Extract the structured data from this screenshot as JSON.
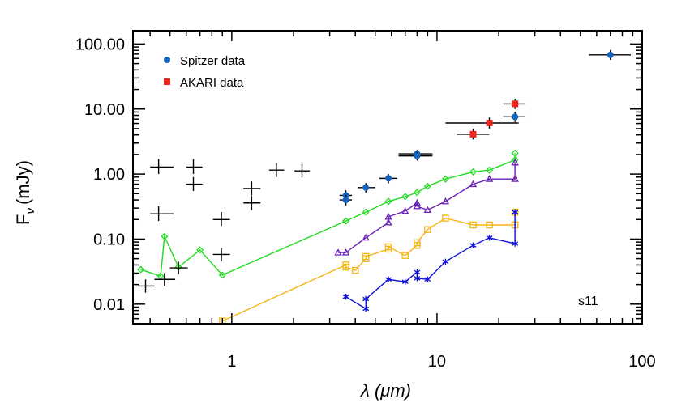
{
  "chart_data": {
    "type": "scatter",
    "xscale": "log",
    "yscale": "log",
    "xlim": [
      0.33,
      100
    ],
    "ylim": [
      0.005,
      160
    ],
    "xlabel": "λ (μm)",
    "ylabel": "F",
    "ylabel_sub": "ν",
    "ylabel_unit": "(mJy)",
    "xticks": [
      {
        "v": 1,
        "label": "1"
      },
      {
        "v": 10,
        "label": "10"
      },
      {
        "v": 100,
        "label": "100"
      }
    ],
    "yticks": [
      {
        "v": 0.01,
        "label": "0.01"
      },
      {
        "v": 0.1,
        "label": "0.10"
      },
      {
        "v": 1,
        "label": "1.00"
      },
      {
        "v": 10,
        "label": "10.00"
      },
      {
        "v": 100,
        "label": "100.00"
      }
    ],
    "legend": [
      {
        "label": "Spitzer data",
        "color": "#1565c0",
        "marker": "circle"
      },
      {
        "label": "AKARI data",
        "color": "#e8281c",
        "marker": "square"
      }
    ],
    "annotation": "s11",
    "colors": {
      "axis": "#000000",
      "spitzer": "#1565c0",
      "akari": "#e8281c",
      "green": "#22dd22",
      "purple": "#6a1fb8",
      "orange": "#f5b614",
      "blue": "#1010dd",
      "black_cross": "#000000"
    },
    "black_crosses": [
      {
        "x": 0.44,
        "y": 1.28,
        "xlo": 0.4,
        "xhi": 0.52,
        "ylo": 1.0,
        "yhi": 1.7
      },
      {
        "x": 0.44,
        "y": 0.245,
        "xlo": 0.4,
        "xhi": 0.52,
        "ylo": 0.19,
        "yhi": 0.32
      },
      {
        "x": 0.38,
        "y": 0.019,
        "xlo": 0.35,
        "xhi": 0.42,
        "ylo": 0.015,
        "yhi": 0.024
      },
      {
        "x": 0.47,
        "y": 0.024,
        "xlo": 0.42,
        "xhi": 0.53,
        "ylo": 0.019,
        "yhi": 0.03
      },
      {
        "x": 0.55,
        "y": 0.036,
        "xlo": 0.5,
        "xhi": 0.61,
        "ylo": 0.029,
        "yhi": 0.045
      },
      {
        "x": 0.65,
        "y": 1.28,
        "xlo": 0.6,
        "xhi": 0.72,
        "ylo": 1.0,
        "yhi": 1.7
      },
      {
        "x": 0.65,
        "y": 0.7,
        "xlo": 0.6,
        "xhi": 0.72,
        "ylo": 0.55,
        "yhi": 0.9
      },
      {
        "x": 0.89,
        "y": 0.2,
        "xlo": 0.81,
        "xhi": 0.98,
        "ylo": 0.16,
        "yhi": 0.26
      },
      {
        "x": 0.89,
        "y": 0.058,
        "xlo": 0.81,
        "xhi": 0.98,
        "ylo": 0.046,
        "yhi": 0.073
      },
      {
        "x": 1.25,
        "y": 0.6,
        "xlo": 1.14,
        "xhi": 1.38,
        "ylo": 0.47,
        "yhi": 0.77
      },
      {
        "x": 1.25,
        "y": 0.36,
        "xlo": 1.14,
        "xhi": 1.38,
        "ylo": 0.28,
        "yhi": 0.46
      },
      {
        "x": 1.65,
        "y": 1.15,
        "xlo": 1.52,
        "xhi": 1.8,
        "ylo": 0.9,
        "yhi": 1.47
      },
      {
        "x": 2.2,
        "y": 1.12,
        "xlo": 2.02,
        "xhi": 2.4,
        "ylo": 0.88,
        "yhi": 1.43
      }
    ],
    "spitzer": [
      {
        "x": 3.6,
        "y": 0.47,
        "xlo": 3.35,
        "xhi": 3.85,
        "ylo": 0.39,
        "yhi": 0.56
      },
      {
        "x": 3.6,
        "y": 0.4,
        "xlo": 3.35,
        "xhi": 3.85,
        "ylo": 0.33,
        "yhi": 0.48
      },
      {
        "x": 4.5,
        "y": 0.62,
        "xlo": 4.1,
        "xhi": 5.0,
        "ylo": 0.52,
        "yhi": 0.73
      },
      {
        "x": 5.8,
        "y": 0.86,
        "xlo": 5.25,
        "xhi": 6.4,
        "ylo": 0.72,
        "yhi": 1.0
      },
      {
        "x": 8.0,
        "y": 2.05,
        "xlo": 6.5,
        "xhi": 9.5,
        "ylo": 1.75,
        "yhi": 2.35
      },
      {
        "x": 8.0,
        "y": 1.9,
        "xlo": 6.5,
        "xhi": 9.5,
        "ylo": 1.62,
        "yhi": 2.2
      },
      {
        "x": 24,
        "y": 7.6,
        "xlo": 21,
        "xhi": 27,
        "ylo": 6.3,
        "yhi": 9.1
      },
      {
        "x": 70,
        "y": 68,
        "xlo": 55,
        "xhi": 88,
        "ylo": 57,
        "yhi": 81
      }
    ],
    "akari": [
      {
        "x": 15,
        "y": 4.1,
        "xlo": 12.5,
        "xhi": 18,
        "ylo": 3.4,
        "yhi": 5.0
      },
      {
        "x": 18,
        "y": 6.1,
        "xlo": 11,
        "xhi": 25,
        "ylo": 5.0,
        "yhi": 7.4
      },
      {
        "x": 24,
        "y": 12.0,
        "xlo": 21,
        "xhi": 27,
        "ylo": 10.0,
        "yhi": 14.4
      }
    ],
    "model_green": {
      "marker": "diamond",
      "points": [
        [
          0.36,
          0.034
        ],
        [
          0.45,
          0.027
        ],
        [
          0.47,
          0.11
        ],
        [
          0.55,
          0.037
        ],
        [
          0.7,
          0.068
        ],
        [
          0.9,
          0.028
        ],
        [
          3.6,
          0.19
        ],
        [
          3.6,
          0.19
        ],
        [
          4.5,
          0.26
        ],
        [
          5.8,
          0.38
        ],
        [
          7.0,
          0.45
        ],
        [
          8.0,
          0.52
        ],
        [
          9.0,
          0.65
        ],
        [
          11,
          0.84
        ],
        [
          15,
          1.08
        ],
        [
          18,
          1.15
        ],
        [
          24,
          1.65
        ],
        [
          24,
          2.1
        ]
      ]
    },
    "model_purple": {
      "marker": "triangle",
      "points": [
        [
          3.3,
          0.062
        ],
        [
          3.6,
          0.062
        ],
        [
          4.5,
          0.105
        ],
        [
          5.8,
          0.18
        ],
        [
          5.8,
          0.22
        ],
        [
          7.0,
          0.27
        ],
        [
          8.0,
          0.36
        ],
        [
          8.0,
          0.32
        ],
        [
          9.0,
          0.28
        ],
        [
          11,
          0.38
        ],
        [
          15,
          0.7
        ],
        [
          18,
          0.84
        ],
        [
          24,
          0.84
        ],
        [
          24,
          1.5
        ]
      ]
    },
    "model_orange": {
      "marker": "square",
      "points": [
        [
          0.9,
          0.0055
        ],
        [
          3.6,
          0.04
        ],
        [
          3.6,
          0.037
        ],
        [
          4.0,
          0.033
        ],
        [
          4.5,
          0.05
        ],
        [
          4.5,
          0.054
        ],
        [
          5.8,
          0.07
        ],
        [
          5.8,
          0.076
        ],
        [
          7.0,
          0.056
        ],
        [
          8.0,
          0.08
        ],
        [
          8.0,
          0.088
        ],
        [
          9.0,
          0.14
        ],
        [
          11,
          0.21
        ],
        [
          15,
          0.165
        ],
        [
          18,
          0.165
        ],
        [
          24,
          0.165
        ],
        [
          24,
          0.26
        ]
      ]
    },
    "model_blue": {
      "marker": "asterisk",
      "points": [
        [
          3.6,
          0.013
        ],
        [
          3.6,
          0.013
        ],
        [
          4.5,
          0.0085
        ],
        [
          4.5,
          0.012
        ],
        [
          5.8,
          0.024
        ],
        [
          7.0,
          0.022
        ],
        [
          8.0,
          0.031
        ],
        [
          8.0,
          0.025
        ],
        [
          9.0,
          0.024
        ],
        [
          11,
          0.045
        ],
        [
          15,
          0.08
        ],
        [
          18,
          0.105
        ],
        [
          24,
          0.085
        ],
        [
          24,
          0.26
        ]
      ]
    }
  }
}
